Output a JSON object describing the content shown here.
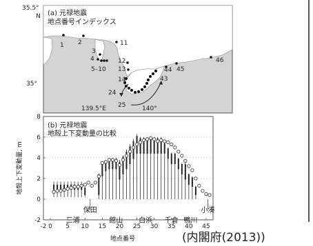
{
  "map": {
    "title_line1": "(a) 元禄地震",
    "title_line2": "地点番号インデックス",
    "lat_top": "35.5°",
    "lat_top_n": "N",
    "lat_mid": "35°",
    "lon_left": "139.5°E",
    "lon_right": "140°",
    "site_labels": [
      "1",
      "2",
      "3",
      "4",
      "5–10",
      "11",
      "12",
      "13",
      "14",
      "24",
      "25",
      "43",
      "44",
      "45",
      "46"
    ]
  },
  "credit": "(内閣府(2013))",
  "colors": {
    "sea": "#d4d4d4",
    "land": "#ffffff",
    "frame": "#555555",
    "bar": "#222222"
  },
  "chart_data": {
    "type": "bar",
    "title": "(b) 元禄地震",
    "subtitle": "地殻上下変動量の比較",
    "xlabel": "地点番号",
    "ylabel": "地殻上下変動量, m",
    "xlim": [
      -2,
      47
    ],
    "ylim": [
      -2,
      8
    ],
    "xticks": [
      -2,
      0,
      5,
      10,
      15,
      20,
      25,
      30,
      35,
      40,
      45
    ],
    "yticks": [
      -2,
      0,
      2,
      4,
      6,
      8
    ],
    "place_labels": [
      "三浦",
      "保田",
      "館山",
      "白浜",
      "千倉",
      "鴨川",
      "小湊"
    ],
    "x": [
      1,
      2,
      3,
      4,
      5,
      6,
      7,
      8,
      9,
      10,
      11,
      12,
      13,
      14,
      15,
      16,
      17,
      18,
      19,
      20,
      21,
      22,
      23,
      24,
      25,
      26,
      27,
      28,
      29,
      30,
      31,
      32,
      33,
      34,
      35,
      36,
      37,
      38,
      39,
      40,
      41,
      42,
      43,
      44,
      45,
      46
    ],
    "observed_low": [
      0.9,
      0.9,
      0.9,
      0.9,
      0.9,
      0.9,
      0.9,
      0.9,
      0.9,
      0.4,
      null,
      null,
      null,
      0.4,
      2.2,
      2.7,
      2.9,
      2.9,
      2.9,
      1.9,
      2.4,
      2.9,
      3.4,
      3.9,
      4.4,
      4.4,
      4.4,
      4.4,
      4.4,
      4.4,
      4.4,
      4.4,
      4.4,
      3.9,
      3.4,
      3.4,
      2.9,
      2.4,
      1.9,
      1.4,
      1.2,
      0.4,
      null,
      null,
      null,
      null
    ],
    "observed_high": [
      1.4,
      1.4,
      1.4,
      1.4,
      1.4,
      1.4,
      1.4,
      1.4,
      1.4,
      1.1,
      null,
      null,
      null,
      2.4,
      3.4,
      3.7,
      3.9,
      3.9,
      3.9,
      3.6,
      4.1,
      4.6,
      5.1,
      5.6,
      6.1,
      5.9,
      5.9,
      5.9,
      5.9,
      5.9,
      5.9,
      5.9,
      5.4,
      4.9,
      4.4,
      4.4,
      3.9,
      3.4,
      3.4,
      2.4,
      2.1,
      1.2,
      null,
      null,
      null,
      null
    ],
    "observed_range_low": [
      0.2,
      0.2,
      0.2,
      0.2,
      0.2,
      0.2,
      0.2,
      0.2,
      0.2,
      0.2,
      null,
      null,
      null,
      0.0,
      0.0,
      0.0,
      0.0,
      0.0,
      0.0,
      0.0,
      0.0,
      0.0,
      0.0,
      0.0,
      0.0,
      0.0,
      0.0,
      0.0,
      0.0,
      0.0,
      0.0,
      0.0,
      0.0,
      0.0,
      0.0,
      0.0,
      0.0,
      0.0,
      0.0,
      0.0,
      0.0,
      0.0,
      null,
      null,
      null,
      null
    ],
    "observed_range_high": [
      1.7,
      1.7,
      1.7,
      1.7,
      1.7,
      1.7,
      1.7,
      1.7,
      1.7,
      1.2,
      null,
      null,
      null,
      2.5,
      3.5,
      3.8,
      4.0,
      4.0,
      4.0,
      3.8,
      4.2,
      4.8,
      5.3,
      5.8,
      6.3,
      6.0,
      6.0,
      6.0,
      6.0,
      6.0,
      6.0,
      6.0,
      5.6,
      5.0,
      4.5,
      4.5,
      4.0,
      3.5,
      3.5,
      2.5,
      2.2,
      1.3,
      null,
      null,
      null,
      null
    ],
    "calculated": [
      0.7,
      0.8,
      0.8,
      0.9,
      1.0,
      1.1,
      1.2,
      1.2,
      1.3,
      1.4,
      1.6,
      1.3,
      1.6,
      2.2,
      3.5,
      3.6,
      3.8,
      3.8,
      3.7,
      3.3,
      3.8,
      4.2,
      4.6,
      5.0,
      5.3,
      5.5,
      5.7,
      5.8,
      5.9,
      5.8,
      5.6,
      5.7,
      5.6,
      5.5,
      5.3,
      5.0,
      4.6,
      4.2,
      3.7,
      3.2,
      2.8,
      2.0,
      1.3,
      0.8,
      0.5,
      0.4
    ]
  }
}
